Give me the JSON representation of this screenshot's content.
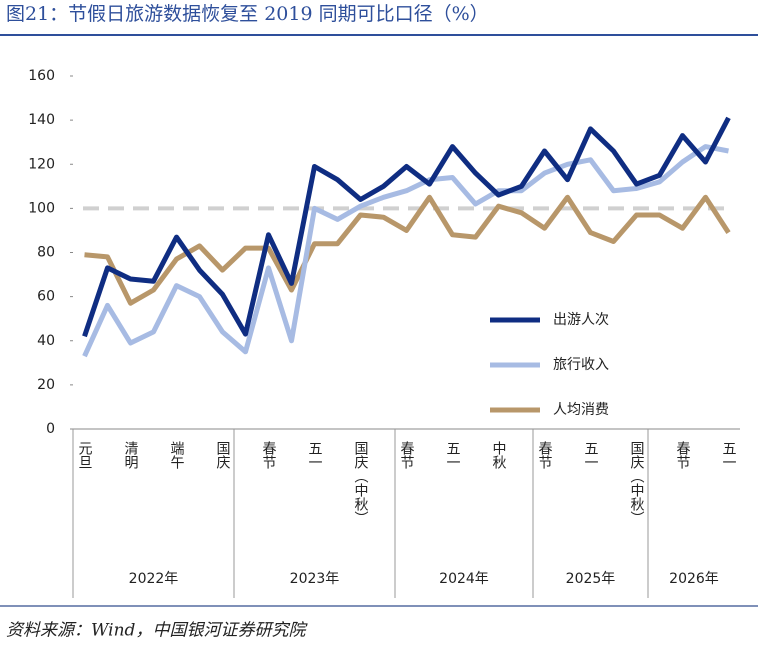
{
  "title": "图21：节假日旅游数据恢复至 2019 同期可比口径（%）",
  "source": "资料来源：Wind，中国银河证券研究院",
  "chart_data": {
    "type": "line",
    "categories": [
      "元旦",
      null,
      "清明",
      null,
      "端午",
      null,
      "国庆",
      null,
      "春节",
      null,
      "五一",
      null,
      "国庆（中秋）",
      null,
      "春节",
      null,
      "五一",
      null,
      "中秋",
      null,
      "春节",
      null,
      "五一",
      null,
      "国庆（中秋）",
      null,
      "春节",
      null,
      "五一"
    ],
    "x_groups": [
      "2022年",
      "2023年",
      "2024年",
      "2025年",
      "2026年"
    ],
    "series": [
      {
        "name": "出游人次",
        "color": "#0f2d82",
        "values": [
          42,
          73,
          68,
          67,
          87,
          72,
          61,
          43,
          88,
          66,
          119,
          113,
          104,
          110,
          119,
          111,
          128,
          116,
          106,
          110,
          126,
          113,
          136,
          126,
          111,
          115,
          133,
          121,
          141
        ]
      },
      {
        "name": "旅行收入",
        "color": "#a7bbe3",
        "values": [
          33,
          56,
          39,
          44,
          65,
          60,
          44,
          35,
          73,
          40,
          100,
          95,
          101,
          105,
          108,
          113,
          114,
          102,
          108,
          108,
          116,
          120,
          122,
          108,
          109,
          112,
          121,
          128,
          126
        ]
      },
      {
        "name": "人均消费",
        "color": "#b8976a",
        "values": [
          79,
          78,
          57,
          63,
          77,
          83,
          72,
          82,
          82,
          63,
          84,
          84,
          97,
          96,
          90,
          105,
          88,
          87,
          101,
          98,
          91,
          105,
          89,
          85,
          97,
          97,
          91,
          105,
          89
        ]
      }
    ],
    "reference_line": {
      "value": 100,
      "color": "#d0d0d0"
    },
    "ylim": [
      0,
      160
    ],
    "yticks": [
      0,
      20,
      40,
      60,
      80,
      100,
      120,
      140,
      160
    ],
    "legend": "right"
  }
}
